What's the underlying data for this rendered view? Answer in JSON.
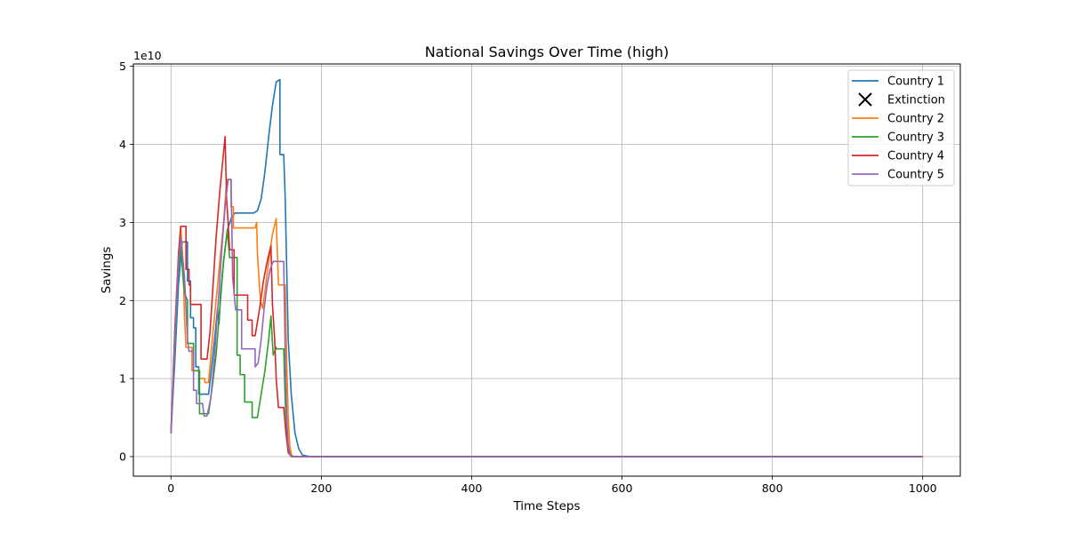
{
  "chart_data": {
    "type": "line",
    "title": "National Savings Over Time (high)",
    "xlabel": "Time Steps",
    "ylabel": "Savings",
    "y_offset_label": "1e10",
    "xlim": [
      -50,
      1050
    ],
    "ylim": [
      -0.25,
      5.03
    ],
    "x_ticks": [
      0,
      200,
      400,
      600,
      800,
      1000
    ],
    "y_ticks": [
      0,
      1,
      2,
      3,
      4,
      5
    ],
    "grid": true,
    "legend_position": "top-right",
    "legend": [
      {
        "label": "Country 1",
        "kind": "line",
        "color": "#1f77b4"
      },
      {
        "label": "Extinction",
        "kind": "marker-x",
        "color": "#000000"
      },
      {
        "label": "Country 2",
        "kind": "line",
        "color": "#ff7f0e"
      },
      {
        "label": "Country 3",
        "kind": "line",
        "color": "#2ca02c"
      },
      {
        "label": "Country 4",
        "kind": "line",
        "color": "#d62728"
      },
      {
        "label": "Country 5",
        "kind": "line",
        "color": "#9467bd"
      }
    ],
    "series": [
      {
        "name": "Country 1",
        "color": "#1f77b4",
        "points": [
          [
            0,
            0.3
          ],
          [
            5,
            1.2
          ],
          [
            10,
            2.2
          ],
          [
            15,
            2.75
          ],
          [
            22,
            2.75
          ],
          [
            22,
            2.25
          ],
          [
            26,
            2.25
          ],
          [
            26,
            1.78
          ],
          [
            30,
            1.78
          ],
          [
            30,
            1.65
          ],
          [
            33,
            1.65
          ],
          [
            33,
            1.15
          ],
          [
            37,
            1.15
          ],
          [
            37,
            0.8
          ],
          [
            50,
            0.8
          ],
          [
            53,
            1.05
          ],
          [
            58,
            1.5
          ],
          [
            62,
            1.9
          ],
          [
            64,
            1.7
          ],
          [
            66,
            2.1
          ],
          [
            70,
            2.5
          ],
          [
            75,
            2.9
          ],
          [
            80,
            3.05
          ],
          [
            85,
            3.12
          ],
          [
            95,
            3.12
          ],
          [
            110,
            3.12
          ],
          [
            115,
            3.15
          ],
          [
            120,
            3.3
          ],
          [
            125,
            3.65
          ],
          [
            130,
            4.1
          ],
          [
            135,
            4.5
          ],
          [
            140,
            4.8
          ],
          [
            145,
            4.83
          ],
          [
            145,
            3.87
          ],
          [
            150,
            3.87
          ],
          [
            152,
            3.3
          ],
          [
            154,
            2.4
          ],
          [
            156,
            1.5
          ],
          [
            160,
            0.8
          ],
          [
            165,
            0.3
          ],
          [
            170,
            0.1
          ],
          [
            175,
            0.02
          ],
          [
            185,
            0.0
          ],
          [
            1000,
            0.0
          ]
        ]
      },
      {
        "name": "Country 2",
        "color": "#ff7f0e",
        "points": [
          [
            0,
            0.3
          ],
          [
            5,
            1.4
          ],
          [
            10,
            2.5
          ],
          [
            13,
            2.95
          ],
          [
            16,
            2.5
          ],
          [
            18,
            1.8
          ],
          [
            20,
            1.4
          ],
          [
            28,
            1.4
          ],
          [
            28,
            1.1
          ],
          [
            38,
            1.1
          ],
          [
            38,
            1.0
          ],
          [
            45,
            1.0
          ],
          [
            45,
            0.95
          ],
          [
            50,
            0.95
          ],
          [
            55,
            1.5
          ],
          [
            60,
            2.0
          ],
          [
            65,
            2.5
          ],
          [
            70,
            3.0
          ],
          [
            73,
            3.4
          ],
          [
            75,
            3.55
          ],
          [
            80,
            3.55
          ],
          [
            80,
            3.2
          ],
          [
            83,
            3.2
          ],
          [
            83,
            2.93
          ],
          [
            95,
            2.93
          ],
          [
            112,
            2.93
          ],
          [
            114,
            3.0
          ],
          [
            115,
            2.6
          ],
          [
            117,
            2.3
          ],
          [
            119,
            2.0
          ],
          [
            122,
            1.9
          ],
          [
            126,
            2.2
          ],
          [
            130,
            2.5
          ],
          [
            135,
            2.85
          ],
          [
            140,
            3.05
          ],
          [
            143,
            2.2
          ],
          [
            152,
            2.2
          ],
          [
            154,
            1.2
          ],
          [
            156,
            0.5
          ],
          [
            158,
            0.15
          ],
          [
            160,
            0.03
          ],
          [
            163,
            0.0
          ],
          [
            1000,
            0.0
          ]
        ]
      },
      {
        "name": "Country 3",
        "color": "#2ca02c",
        "points": [
          [
            0,
            0.3
          ],
          [
            5,
            1.4
          ],
          [
            10,
            2.4
          ],
          [
            13,
            2.7
          ],
          [
            16,
            2.3
          ],
          [
            18,
            2.1
          ],
          [
            22,
            2.0
          ],
          [
            22,
            1.45
          ],
          [
            30,
            1.45
          ],
          [
            30,
            1.1
          ],
          [
            38,
            1.1
          ],
          [
            38,
            0.55
          ],
          [
            45,
            0.55
          ],
          [
            50,
            0.55
          ],
          [
            55,
            0.9
          ],
          [
            60,
            1.3
          ],
          [
            65,
            1.9
          ],
          [
            70,
            2.5
          ],
          [
            75,
            2.9
          ],
          [
            78,
            2.55
          ],
          [
            88,
            2.55
          ],
          [
            88,
            1.3
          ],
          [
            92,
            1.3
          ],
          [
            92,
            1.05
          ],
          [
            98,
            1.05
          ],
          [
            98,
            0.7
          ],
          [
            108,
            0.7
          ],
          [
            108,
            0.5
          ],
          [
            115,
            0.5
          ],
          [
            120,
            0.8
          ],
          [
            125,
            1.1
          ],
          [
            130,
            1.5
          ],
          [
            133,
            1.8
          ],
          [
            136,
            1.3
          ],
          [
            140,
            1.4
          ],
          [
            140,
            1.38
          ],
          [
            150,
            1.38
          ],
          [
            152,
            0.7
          ],
          [
            155,
            0.2
          ],
          [
            158,
            0.05
          ],
          [
            160,
            0.0
          ],
          [
            1000,
            0.0
          ]
        ]
      },
      {
        "name": "Country 4",
        "color": "#d62728",
        "points": [
          [
            0,
            0.3
          ],
          [
            5,
            1.6
          ],
          [
            10,
            2.6
          ],
          [
            13,
            2.95
          ],
          [
            20,
            2.95
          ],
          [
            20,
            2.4
          ],
          [
            24,
            2.4
          ],
          [
            24,
            2.2
          ],
          [
            26,
            2.2
          ],
          [
            26,
            1.95
          ],
          [
            40,
            1.95
          ],
          [
            40,
            1.25
          ],
          [
            48,
            1.25
          ],
          [
            52,
            1.6
          ],
          [
            56,
            2.2
          ],
          [
            60,
            2.8
          ],
          [
            65,
            3.4
          ],
          [
            70,
            3.9
          ],
          [
            72,
            4.1
          ],
          [
            74,
            3.3
          ],
          [
            76,
            3.0
          ],
          [
            78,
            2.65
          ],
          [
            84,
            2.65
          ],
          [
            84,
            2.07
          ],
          [
            102,
            2.07
          ],
          [
            102,
            1.75
          ],
          [
            108,
            1.75
          ],
          [
            108,
            1.55
          ],
          [
            112,
            1.55
          ],
          [
            118,
            1.9
          ],
          [
            123,
            2.25
          ],
          [
            128,
            2.5
          ],
          [
            133,
            2.7
          ],
          [
            135,
            1.95
          ],
          [
            138,
            1.5
          ],
          [
            140,
            1.0
          ],
          [
            143,
            0.63
          ],
          [
            150,
            0.63
          ],
          [
            153,
            0.3
          ],
          [
            156,
            0.05
          ],
          [
            160,
            0.0
          ],
          [
            1000,
            0.0
          ]
        ]
      },
      {
        "name": "Country 5",
        "color": "#9467bd",
        "points": [
          [
            0,
            0.3
          ],
          [
            5,
            1.5
          ],
          [
            10,
            2.5
          ],
          [
            13,
            2.8
          ],
          [
            16,
            2.5
          ],
          [
            18,
            2.3
          ],
          [
            22,
            1.5
          ],
          [
            24,
            1.35
          ],
          [
            30,
            1.35
          ],
          [
            30,
            0.85
          ],
          [
            34,
            0.85
          ],
          [
            34,
            0.68
          ],
          [
            42,
            0.68
          ],
          [
            44,
            0.52
          ],
          [
            48,
            0.52
          ],
          [
            53,
            0.75
          ],
          [
            58,
            1.3
          ],
          [
            63,
            2.0
          ],
          [
            68,
            2.7
          ],
          [
            72,
            3.2
          ],
          [
            76,
            3.55
          ],
          [
            80,
            3.55
          ],
          [
            82,
            2.3
          ],
          [
            86,
            1.88
          ],
          [
            94,
            1.88
          ],
          [
            94,
            1.38
          ],
          [
            112,
            1.38
          ],
          [
            112,
            1.15
          ],
          [
            116,
            1.2
          ],
          [
            120,
            1.5
          ],
          [
            124,
            1.9
          ],
          [
            128,
            2.2
          ],
          [
            132,
            2.4
          ],
          [
            136,
            2.5
          ],
          [
            138,
            2.5
          ],
          [
            150,
            2.5
          ],
          [
            152,
            1.3
          ],
          [
            154,
            0.5
          ],
          [
            156,
            0.15
          ],
          [
            158,
            0.03
          ],
          [
            160,
            0.0
          ],
          [
            1000,
            0.0
          ]
        ]
      }
    ]
  }
}
